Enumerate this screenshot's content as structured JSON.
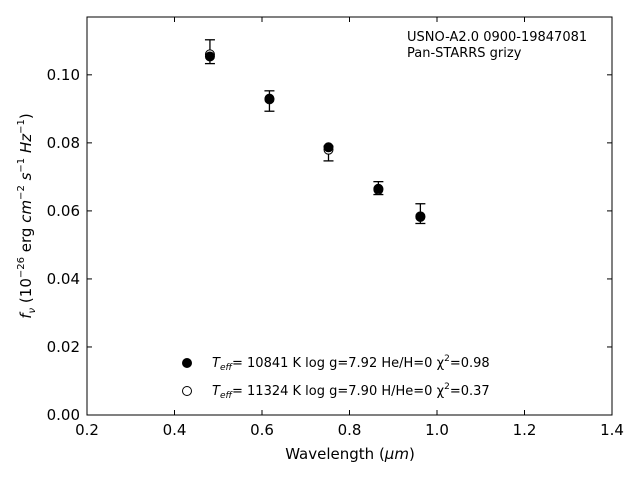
{
  "chart_data": {
    "type": "scatter",
    "xlabel": "Wavelength (",
    "xlabel_unit": "μm",
    "ylabel_prefix": "f",
    "ylabel_sub": "ν",
    "ylabel_units": "(10",
    "ylabel_units_exp": "−26",
    "ylabel_erg": " erg ",
    "ylabel_cm": "cm",
    "ylabel_cm_exp": "−2",
    "ylabel_s": "s",
    "ylabel_s_exp": "−1",
    "ylabel_hz": "Hz",
    "ylabel_hz_exp": "−1",
    "xlim": [
      0.2,
      1.4
    ],
    "ylim": [
      0.0,
      0.117
    ],
    "xticks": [
      0.2,
      0.4,
      0.6,
      0.8,
      1.0,
      1.2,
      1.4
    ],
    "xtick_labels": [
      "0.2",
      "0.4",
      "0.6",
      "0.8",
      "1.0",
      "1.2",
      "1.4"
    ],
    "yticks": [
      0.0,
      0.02,
      0.04,
      0.06,
      0.08,
      0.1
    ],
    "ytick_labels": [
      "0.00",
      "0.02",
      "0.04",
      "0.06",
      "0.08",
      "0.10"
    ],
    "annotation_lines": [
      "USNO-A2.0 0900-19847081",
      "Pan-STARRS grizy"
    ],
    "grid": false,
    "legend_position": "lower-center",
    "observed": {
      "x": [
        0.481,
        0.617,
        0.752,
        0.866,
        0.962
      ],
      "y": [
        0.1068,
        0.0923,
        0.0772,
        0.0668,
        0.0593
      ],
      "err_low": [
        0.0035,
        0.003,
        0.0025,
        0.002,
        0.003
      ],
      "err_high": [
        0.0035,
        0.003,
        0.0018,
        0.0018,
        0.0028
      ]
    },
    "series": [
      {
        "marker": "filled",
        "legend_text": "= 10841 K  log g=7.92  He/H=0  χ",
        "x": [
          0.481,
          0.617,
          0.752,
          0.866,
          0.962
        ],
        "y": [
          0.1054,
          0.093,
          0.0787,
          0.0665,
          0.0582
        ]
      },
      {
        "marker": "open",
        "legend_text": "= 11324 K  log g=7.90  H/He=0  χ",
        "x": [
          0.481,
          0.617,
          0.752,
          0.866,
          0.962
        ],
        "y": [
          0.106,
          0.0928,
          0.078,
          0.0662,
          0.0584
        ]
      }
    ],
    "legend_entries": [
      {
        "teff": "T",
        "teff_sub": "eff",
        "text": "= 10841 K  log g=7.92  He/H=0  χ",
        "chi_exp": "2",
        "chi_val": "=0.98"
      },
      {
        "teff": "T",
        "teff_sub": "eff",
        "text": "= 11324 K  log g=7.90  H/He=0  χ",
        "chi_exp": "2",
        "chi_val": "=0.37"
      }
    ],
    "colors": {
      "marker": "#000000",
      "axis": "#000000",
      "background": "#ffffff"
    }
  }
}
